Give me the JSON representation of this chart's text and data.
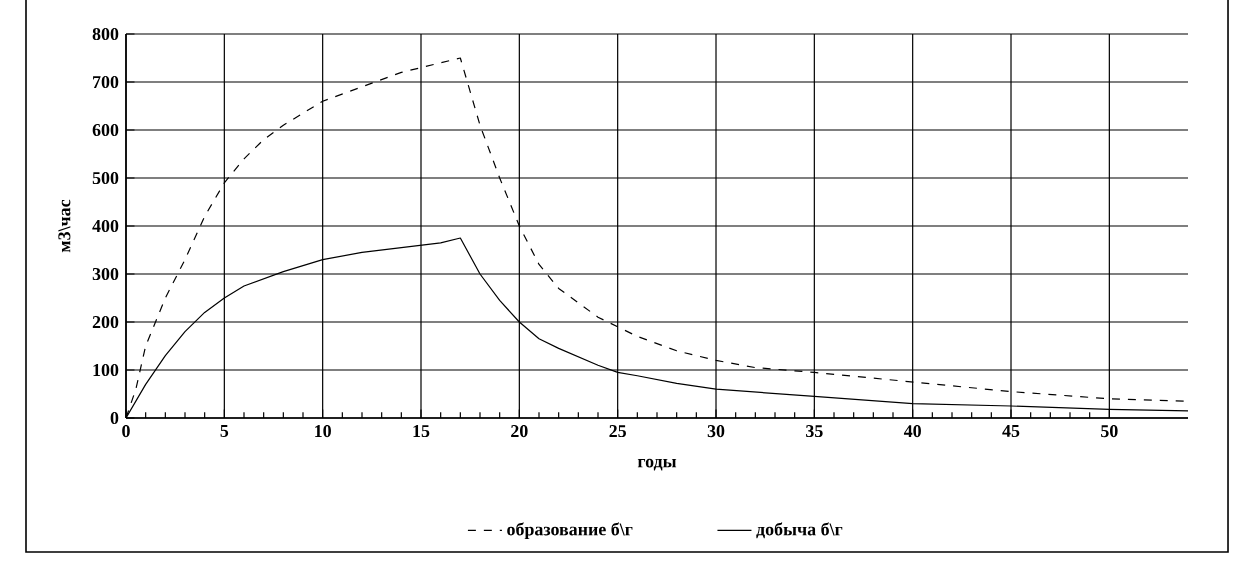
{
  "chart_data": {
    "type": "line",
    "xlabel": "годы",
    "ylabel": "м3\\час",
    "xlim": [
      0,
      54
    ],
    "xticks": [
      0,
      5,
      10,
      15,
      20,
      25,
      30,
      35,
      40,
      45,
      50
    ],
    "ylim": [
      0,
      800
    ],
    "yticks": [
      0,
      100,
      200,
      300,
      400,
      500,
      600,
      700,
      800
    ],
    "grid": true,
    "legend": "bottom",
    "series": [
      {
        "name": "образование б\\г",
        "color": "#000000",
        "line_style": "dashed",
        "x": [
          0,
          0.5,
          1,
          2,
          3,
          4,
          5,
          6,
          7,
          8,
          10,
          12,
          14,
          16,
          17,
          18,
          19,
          20,
          21,
          22,
          24,
          25,
          26,
          28,
          30,
          32,
          35,
          40,
          45,
          50,
          54
        ],
        "values": [
          0,
          60,
          150,
          250,
          330,
          420,
          490,
          540,
          580,
          610,
          660,
          690,
          720,
          740,
          750,
          610,
          500,
          400,
          320,
          270,
          210,
          190,
          170,
          140,
          120,
          105,
          95,
          75,
          55,
          40,
          35
        ]
      },
      {
        "name": "добыча б\\г",
        "color": "#000000",
        "line_style": "solid",
        "x": [
          0,
          1,
          2,
          3,
          4,
          5,
          6,
          8,
          10,
          12,
          14,
          16,
          17,
          18,
          19,
          20,
          21,
          22,
          24,
          25,
          26,
          28,
          30,
          35,
          40,
          45,
          50,
          54
        ],
        "values": [
          0,
          70,
          130,
          180,
          220,
          250,
          275,
          305,
          330,
          345,
          355,
          365,
          375,
          300,
          245,
          200,
          165,
          145,
          110,
          95,
          88,
          72,
          60,
          45,
          30,
          25,
          18,
          15
        ]
      }
    ]
  }
}
